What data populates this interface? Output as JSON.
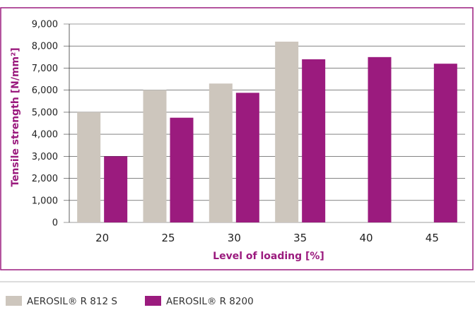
{
  "colors": {
    "frame": "#9b1b7e",
    "axis_title": "#9b1b7e",
    "grid": "#3a3a3a",
    "separator": "#b9b9b9"
  },
  "chart_data": {
    "type": "bar",
    "title": "",
    "xlabel": "Level of loading [%]",
    "ylabel": "Tensile strength [N/mm²]",
    "categories": [
      "20",
      "25",
      "30",
      "35",
      "40",
      "45"
    ],
    "ylim": [
      0,
      9000
    ],
    "yticks": [
      "0",
      "1,000",
      "2,000",
      "3,000",
      "4,000",
      "5,000",
      "6,000",
      "7,000",
      "8,000",
      "9,000"
    ],
    "grid": true,
    "legend_position": "bottom-left",
    "series": [
      {
        "name": "AEROSIL® R 812 S",
        "color": "#cdc6bd",
        "values": [
          5000,
          6000,
          6300,
          8200,
          null,
          null
        ]
      },
      {
        "name": "AEROSIL® R 8200",
        "color": "#9b1b7e",
        "values": [
          3000,
          4750,
          5880,
          7400,
          7500,
          7200
        ]
      }
    ]
  }
}
